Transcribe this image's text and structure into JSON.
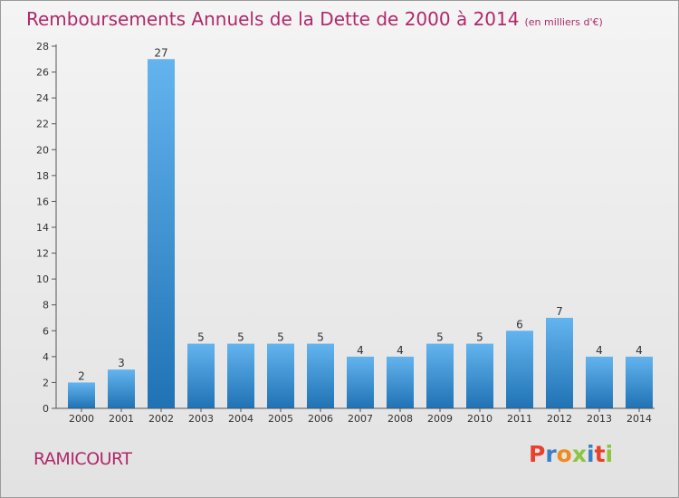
{
  "chart_data": {
    "type": "bar",
    "title": "Remboursements Annuels de la Dette de 2000 à 2014",
    "subtitle": "(en milliers d'€)",
    "categories": [
      "2000",
      "2001",
      "2002",
      "2003",
      "2004",
      "2005",
      "2006",
      "2007",
      "2008",
      "2009",
      "2010",
      "2011",
      "2012",
      "2013",
      "2014"
    ],
    "values": [
      2,
      3,
      27,
      5,
      5,
      5,
      5,
      4,
      4,
      5,
      5,
      6,
      7,
      4,
      4
    ],
    "xlabel": "",
    "ylabel": "",
    "ylim": [
      0,
      28
    ],
    "yticks": [
      0,
      2,
      4,
      6,
      8,
      10,
      12,
      14,
      16,
      18,
      20,
      22,
      24,
      26,
      28
    ],
    "grid": false,
    "legend": "none"
  },
  "footer": {
    "commune": "RAMICOURT",
    "logo": "Proxiti"
  },
  "colors": {
    "title": "#b0286b",
    "bar_top": "#63b4ee",
    "bar_bottom": "#1f72b4",
    "logo": [
      "#e8412c",
      "#3a7fc6",
      "#f08b1d",
      "#8cc63f",
      "#3a7fc6",
      "#e8412c",
      "#8cc63f"
    ]
  }
}
